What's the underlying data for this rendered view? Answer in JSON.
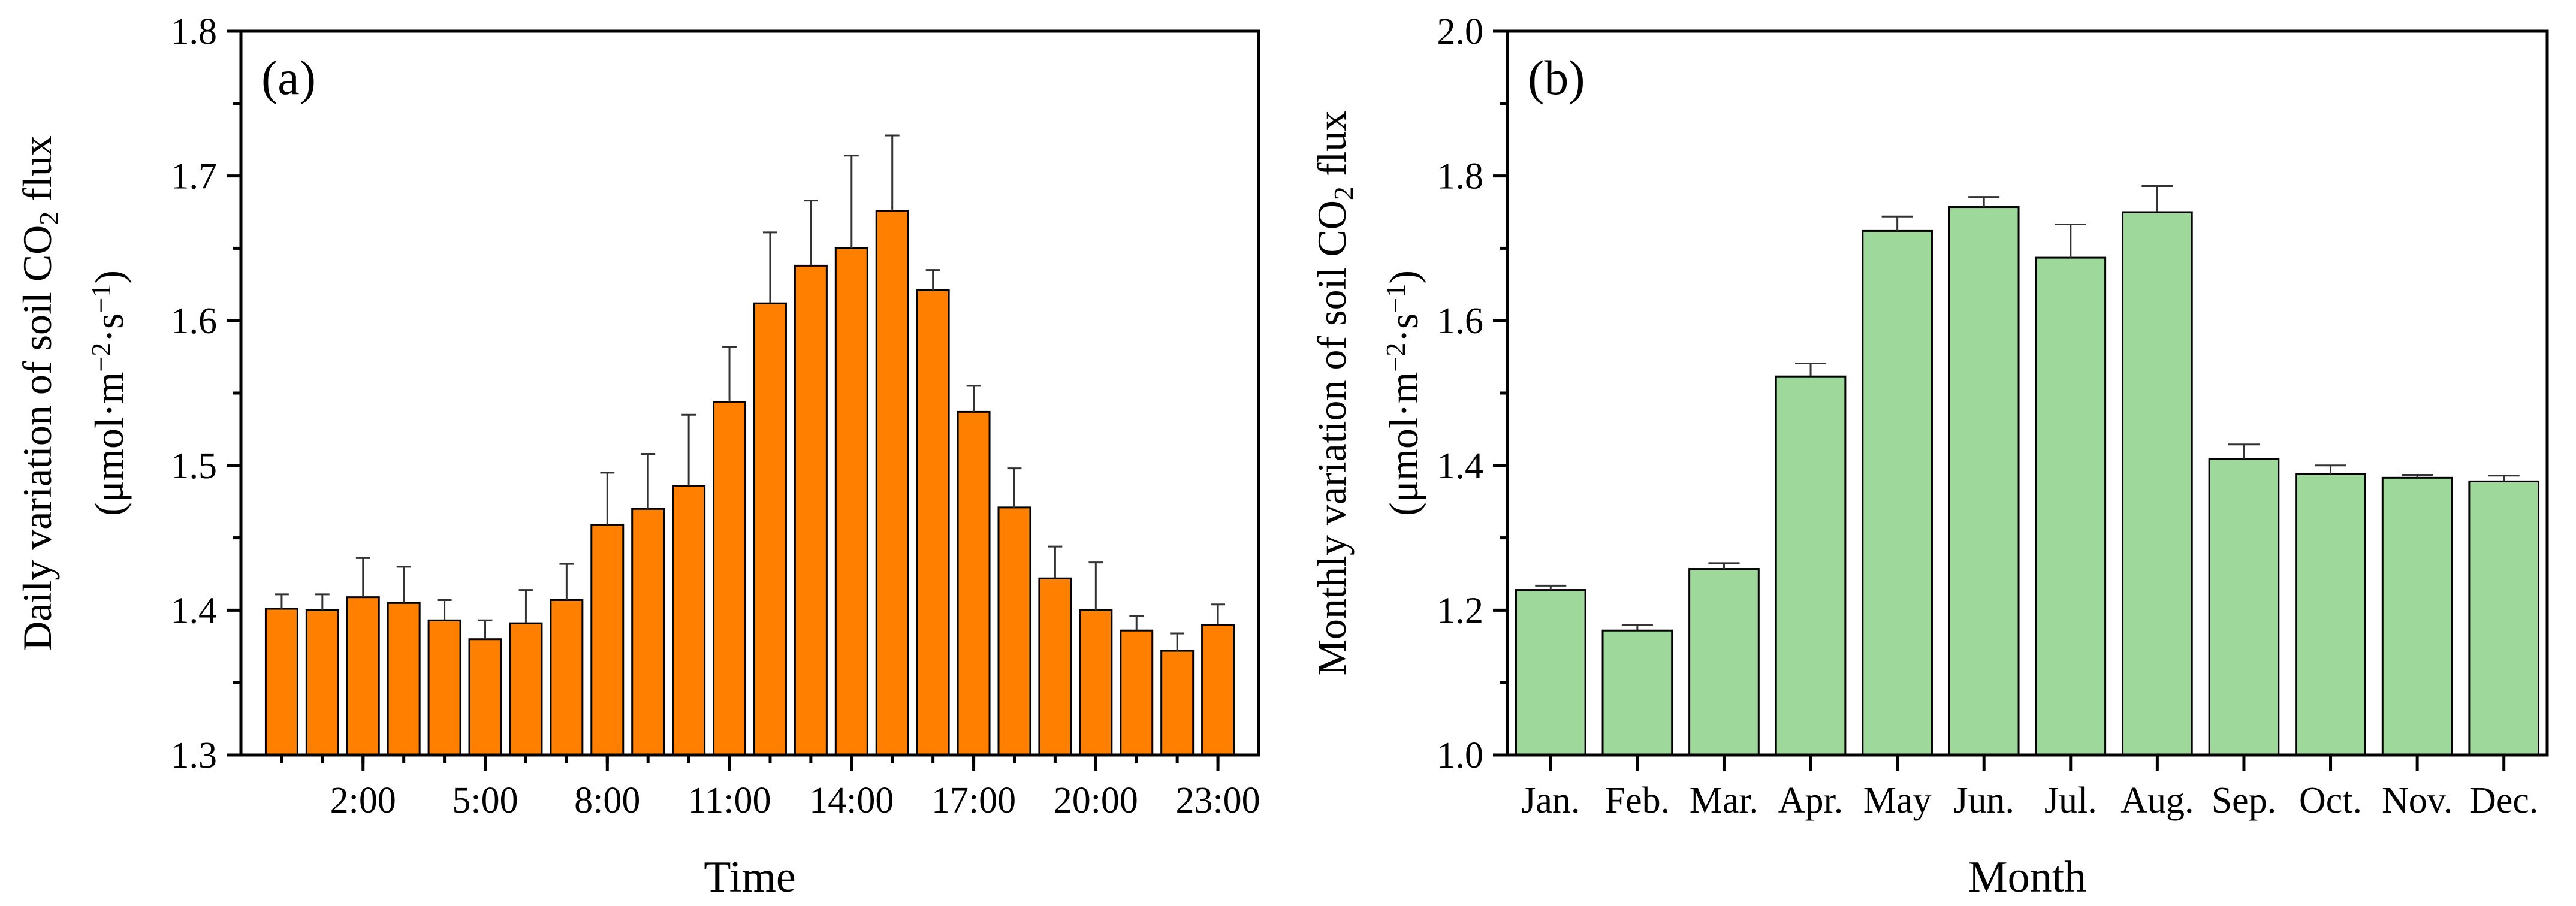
{
  "chart_data": [
    {
      "type": "bar",
      "panel_label": "(a)",
      "title": "",
      "xlabel": "Time",
      "ylabel_lines": [
        [
          "Daily variation of soil CO",
          "2",
          " flux"
        ],
        [
          "(μmol·m",
          "−2",
          "·s",
          "−1",
          ")"
        ]
      ],
      "ylim": [
        1.3,
        1.8
      ],
      "yticks": [
        "1.3",
        "1.4",
        "1.5",
        "1.6",
        "1.7",
        "1.8"
      ],
      "xtick_labels": [
        "2:00",
        "5:00",
        "8:00",
        "11:00",
        "14:00",
        "17:00",
        "20:00",
        "23:00"
      ],
      "xtick_positions": [
        2,
        5,
        8,
        11,
        14,
        17,
        20,
        23
      ],
      "categories": [
        "0:00",
        "1:00",
        "2:00",
        "3:00",
        "4:00",
        "5:00",
        "6:00",
        "7:00",
        "8:00",
        "9:00",
        "10:00",
        "11:00",
        "12:00",
        "13:00",
        "14:00",
        "15:00",
        "16:00",
        "17:00",
        "18:00",
        "19:00",
        "20:00",
        "21:00",
        "22:00",
        "23:00"
      ],
      "values": [
        1.401,
        1.4,
        1.409,
        1.405,
        1.393,
        1.38,
        1.391,
        1.407,
        1.459,
        1.47,
        1.486,
        1.544,
        1.612,
        1.638,
        1.65,
        1.676,
        1.621,
        1.537,
        1.471,
        1.422,
        1.4,
        1.386,
        1.372,
        1.39
      ],
      "errors": [
        0.01,
        0.011,
        0.027,
        0.025,
        0.014,
        0.013,
        0.023,
        0.025,
        0.036,
        0.038,
        0.049,
        0.038,
        0.049,
        0.045,
        0.064,
        0.052,
        0.014,
        0.018,
        0.027,
        0.022,
        0.033,
        0.01,
        0.012,
        0.014
      ],
      "bar_color": "#ff8000",
      "edge_color": "#000000"
    },
    {
      "type": "bar",
      "panel_label": "(b)",
      "title": "",
      "xlabel": "Month",
      "ylabel_lines": [
        [
          "Monthly variation of soil CO",
          "2",
          " flux"
        ],
        [
          "(μmol·m",
          "−2",
          "·s",
          "−1",
          ")"
        ]
      ],
      "ylim": [
        1.0,
        2.0
      ],
      "yticks": [
        "1.0",
        "1.2",
        "1.4",
        "1.6",
        "1.8",
        "2.0"
      ],
      "categories": [
        "Jan.",
        "Feb.",
        "Mar.",
        "Apr.",
        "May",
        "Jun.",
        "Jul.",
        "Aug.",
        "Sep.",
        "Oct.",
        "Nov.",
        "Dec."
      ],
      "values": [
        1.228,
        1.172,
        1.257,
        1.523,
        1.724,
        1.757,
        1.687,
        1.75,
        1.409,
        1.388,
        1.383,
        1.378
      ],
      "errors": [
        0.006,
        0.008,
        0.008,
        0.018,
        0.02,
        0.014,
        0.046,
        0.036,
        0.02,
        0.012,
        0.004,
        0.008
      ],
      "bar_color": "#9ed89b",
      "edge_color": "#000000"
    }
  ]
}
